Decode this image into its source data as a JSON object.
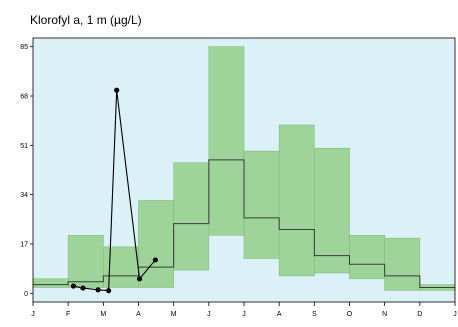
{
  "chart_data": {
    "type": "area",
    "title": "Klorofyl a, 1 m (µg/L)",
    "xlabel": "",
    "ylabel": "",
    "x_tick_labels": [
      "J",
      "F",
      "M",
      "A",
      "M",
      "J",
      "J",
      "A",
      "S",
      "O",
      "N",
      "D",
      "J"
    ],
    "y_ticks": [
      0,
      17,
      34,
      51,
      68,
      85
    ],
    "ylim": [
      -3,
      88
    ],
    "xlim": [
      0,
      12
    ],
    "grid": false,
    "colors": {
      "background": "#dcf0f7",
      "band": "#9ed39a",
      "band_edge": "#7fbf7b",
      "median": "#3a3a3a",
      "observed": "#000000"
    },
    "series": [
      {
        "kind": "monthly_range",
        "months": [
          {
            "month": "J",
            "low": 2,
            "median": 3,
            "high": 5
          },
          {
            "month": "F",
            "low": 2,
            "median": 4,
            "high": 20
          },
          {
            "month": "M",
            "low": 2,
            "median": 6,
            "high": 16
          },
          {
            "month": "A",
            "low": 2,
            "median": 9,
            "high": 32
          },
          {
            "month": "M",
            "low": 8,
            "median": 24,
            "high": 45
          },
          {
            "month": "J",
            "low": 20,
            "median": 46,
            "high": 85
          },
          {
            "month": "J",
            "low": 12,
            "median": 26,
            "high": 49
          },
          {
            "month": "A",
            "low": 6,
            "median": 22,
            "high": 58
          },
          {
            "month": "S",
            "low": 7,
            "median": 13,
            "high": 50
          },
          {
            "month": "O",
            "low": 5,
            "median": 10,
            "high": 20
          },
          {
            "month": "N",
            "low": 1,
            "median": 6,
            "high": 19
          },
          {
            "month": "D",
            "low": 1,
            "median": 2,
            "high": 3
          }
        ]
      },
      {
        "kind": "observations",
        "points": [
          {
            "x": 1.15,
            "y": 2.5
          },
          {
            "x": 1.42,
            "y": 1.8
          },
          {
            "x": 1.85,
            "y": 1.2
          },
          {
            "x": 2.15,
            "y": 0.9
          },
          {
            "x": 2.38,
            "y": 70
          },
          {
            "x": 3.03,
            "y": 5
          },
          {
            "x": 3.48,
            "y": 11.5
          }
        ]
      }
    ]
  }
}
